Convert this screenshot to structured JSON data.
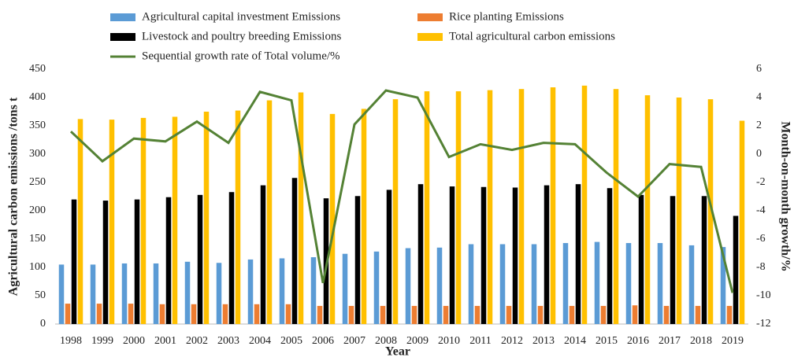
{
  "chart_data": {
    "type": "bar-line",
    "x_label": "Year",
    "y_label": "Agricultural carbon emissions /tons t",
    "y2_label": "Month-on-month growth/%",
    "categories": [
      "1998",
      "1999",
      "2000",
      "2001",
      "2002",
      "2003",
      "2004",
      "2005",
      "2006",
      "2007",
      "2008",
      "2009",
      "2010",
      "2011",
      "2012",
      "2013",
      "2014",
      "2015",
      "2016",
      "2017",
      "2018",
      "2019"
    ],
    "ylim": [
      0,
      450
    ],
    "yticks": [
      0,
      50,
      100,
      150,
      200,
      250,
      300,
      350,
      400,
      450
    ],
    "y2lim": [
      -12,
      6
    ],
    "y2ticks": [
      -12,
      -10,
      -8,
      -6,
      -4,
      -2,
      0,
      2,
      4,
      6
    ],
    "grid": false,
    "series": [
      {
        "name": "Agricultural capital investment Emissions",
        "type": "bar",
        "color": "#5b9bd5",
        "values": [
          105,
          105,
          107,
          107,
          110,
          108,
          114,
          116,
          118,
          124,
          128,
          134,
          135,
          141,
          141,
          141,
          143,
          145,
          143,
          143,
          139,
          136
        ]
      },
      {
        "name": "Rice planting Emissions",
        "type": "bar",
        "color": "#ed7d31",
        "values": [
          36,
          36,
          36,
          35,
          35,
          35,
          35,
          35,
          32,
          32,
          32,
          32,
          32,
          32,
          32,
          32,
          32,
          32,
          33,
          32,
          32,
          32
        ]
      },
      {
        "name": "Livestock and poultry breeding Emissions",
        "type": "bar",
        "color": "#000000",
        "values": [
          220,
          218,
          220,
          224,
          228,
          233,
          245,
          258,
          222,
          226,
          237,
          247,
          243,
          242,
          241,
          245,
          247,
          240,
          228,
          226,
          226,
          191
        ]
      },
      {
        "name": "Total agricultural carbon emissions",
        "type": "bar",
        "color": "#ffc000",
        "values": [
          362,
          361,
          364,
          366,
          375,
          377,
          395,
          409,
          371,
          380,
          397,
          411,
          411,
          413,
          415,
          418,
          421,
          415,
          404,
          400,
          397,
          359
        ]
      },
      {
        "name": "Sequential growth rate of Total volume/%",
        "type": "line",
        "axis": "y2",
        "color": "#548235",
        "values": [
          1.6,
          -0.5,
          1.1,
          0.9,
          2.3,
          0.8,
          4.4,
          3.8,
          -9.1,
          2.1,
          4.5,
          4.0,
          -0.2,
          0.7,
          0.3,
          0.8,
          0.7,
          -1.3,
          -3.0,
          -0.7,
          -0.9,
          -9.8
        ]
      }
    ]
  }
}
